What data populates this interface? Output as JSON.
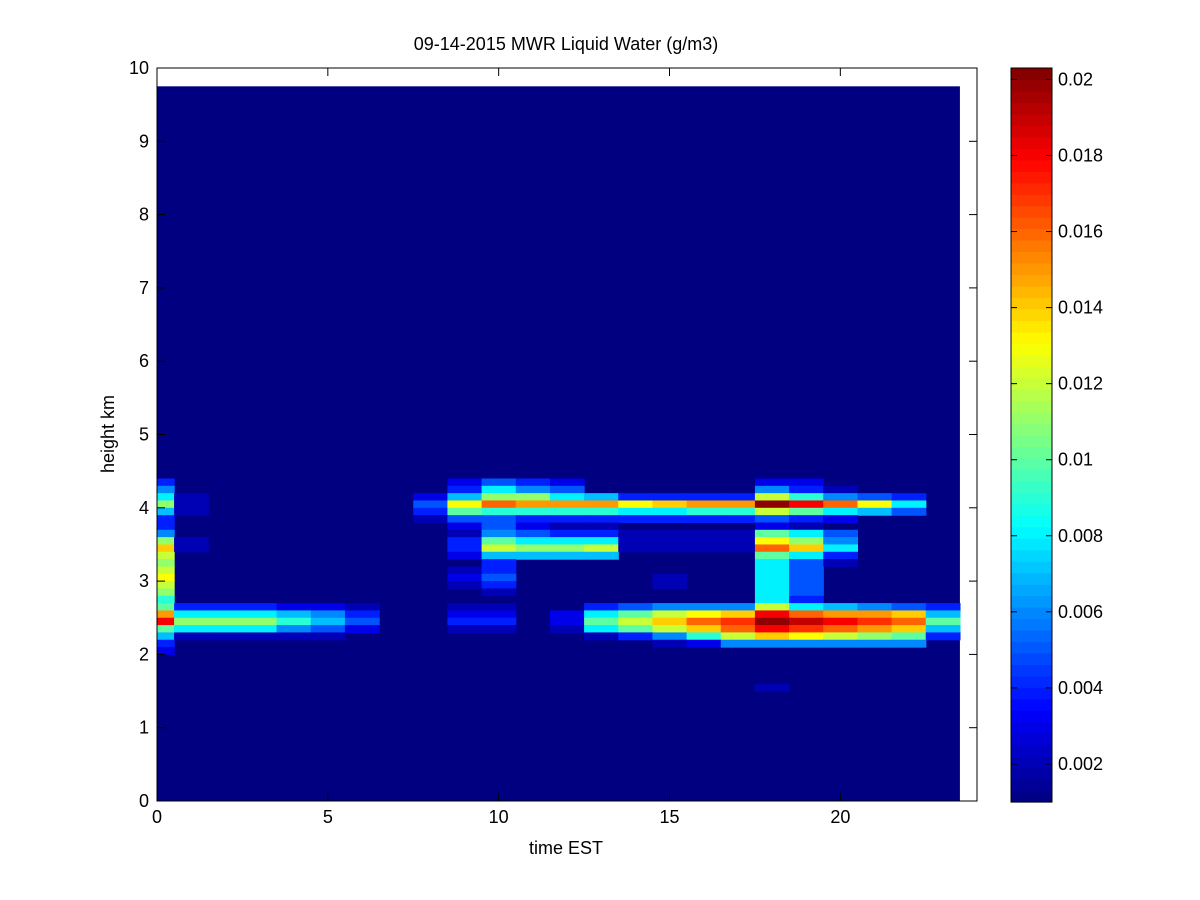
{
  "chart_data": {
    "type": "heatmap",
    "title": "09-14-2015 MWR Liquid Water (g/m3)",
    "xlabel": "time EST",
    "ylabel": "height km",
    "xlim": [
      0,
      24
    ],
    "ylim": [
      0,
      10
    ],
    "x_ticks": [
      0,
      5,
      10,
      15,
      20
    ],
    "y_ticks": [
      0,
      1,
      2,
      3,
      4,
      5,
      6,
      7,
      8,
      9,
      10
    ],
    "x_tick_labels": [
      "0",
      "5",
      "10",
      "15",
      "20"
    ],
    "y_tick_labels": [
      "0",
      "1",
      "2",
      "3",
      "4",
      "5",
      "6",
      "7",
      "8",
      "9",
      "10"
    ],
    "colorbar": {
      "colormap": "jet",
      "range": [
        0.001,
        0.0203
      ],
      "ticks": [
        0.002,
        0.004,
        0.006,
        0.008,
        0.01,
        0.012,
        0.014,
        0.016,
        0.018,
        0.02
      ],
      "tick_labels": [
        "0.002",
        "0.004",
        "0.006",
        "0.008",
        "0.01",
        "0.012",
        "0.014",
        "0.016",
        "0.018",
        "0.02"
      ]
    },
    "background_value": 0.001,
    "x_cell_edges": [
      0,
      0.5,
      1.5,
      2.5,
      3.5,
      4.5,
      5.5,
      6.5,
      7.5,
      8.5,
      9.5,
      10.5,
      11.5,
      12.5,
      13.5,
      14.5,
      15.5,
      16.5,
      17.5,
      18.5,
      19.5,
      20.5,
      21.5,
      22.5,
      23.5
    ],
    "y_top": 9.75,
    "bands": [
      {
        "y0": 4.3,
        "y1": 4.4,
        "values": [
          0.004,
          0.001,
          0.001,
          0.001,
          0.001,
          0.001,
          0.001,
          0.001,
          0.001,
          0.003,
          0.005,
          0.004,
          0.003,
          0.001,
          0.001,
          0.001,
          0.001,
          0.001,
          0.003,
          0.003,
          0.001,
          0.001,
          0.001,
          0.001
        ]
      },
      {
        "y0": 4.2,
        "y1": 4.3,
        "values": [
          0.006,
          0.001,
          0.001,
          0.001,
          0.001,
          0.001,
          0.001,
          0.001,
          0.001,
          0.004,
          0.008,
          0.006,
          0.005,
          0.001,
          0.001,
          0.001,
          0.001,
          0.001,
          0.006,
          0.004,
          0.002,
          0.001,
          0.001,
          0.001
        ]
      },
      {
        "y0": 4.1,
        "y1": 4.2,
        "values": [
          0.008,
          0.002,
          0.001,
          0.001,
          0.001,
          0.001,
          0.001,
          0.001,
          0.003,
          0.007,
          0.011,
          0.011,
          0.008,
          0.007,
          0.004,
          0.004,
          0.004,
          0.004,
          0.012,
          0.009,
          0.006,
          0.005,
          0.004,
          0.001
        ]
      },
      {
        "y0": 4.0,
        "y1": 4.1,
        "values": [
          0.011,
          0.002,
          0.001,
          0.001,
          0.001,
          0.001,
          0.001,
          0.001,
          0.005,
          0.013,
          0.016,
          0.015,
          0.015,
          0.015,
          0.013,
          0.014,
          0.015,
          0.015,
          0.02,
          0.018,
          0.016,
          0.013,
          0.008,
          0.001
        ]
      },
      {
        "y0": 3.9,
        "y1": 4.0,
        "values": [
          0.007,
          0.002,
          0.001,
          0.001,
          0.001,
          0.001,
          0.001,
          0.001,
          0.004,
          0.01,
          0.009,
          0.009,
          0.009,
          0.009,
          0.008,
          0.008,
          0.009,
          0.009,
          0.012,
          0.01,
          0.008,
          0.007,
          0.005,
          0.001
        ]
      },
      {
        "y0": 3.8,
        "y1": 3.9,
        "values": [
          0.004,
          0.001,
          0.001,
          0.001,
          0.001,
          0.001,
          0.001,
          0.001,
          0.002,
          0.005,
          0.005,
          0.004,
          0.004,
          0.004,
          0.004,
          0.004,
          0.004,
          0.004,
          0.005,
          0.004,
          0.003,
          0.001,
          0.001,
          0.001
        ]
      },
      {
        "y0": 3.7,
        "y1": 3.8,
        "values": [
          0.004,
          0.001,
          0.001,
          0.001,
          0.001,
          0.001,
          0.001,
          0.001,
          0.001,
          0.003,
          0.005,
          0.003,
          0.002,
          0.002,
          0.001,
          0.001,
          0.001,
          0.001,
          0.003,
          0.002,
          0.001,
          0.001,
          0.001,
          0.001
        ]
      },
      {
        "y0": 3.6,
        "y1": 3.7,
        "values": [
          0.006,
          0.001,
          0.001,
          0.001,
          0.001,
          0.001,
          0.001,
          0.001,
          0.001,
          0.002,
          0.006,
          0.005,
          0.004,
          0.004,
          0.002,
          0.002,
          0.002,
          0.002,
          0.01,
          0.008,
          0.005,
          0.001,
          0.001,
          0.001
        ]
      },
      {
        "y0": 3.5,
        "y1": 3.6,
        "values": [
          0.011,
          0.002,
          0.001,
          0.001,
          0.001,
          0.001,
          0.001,
          0.001,
          0.001,
          0.004,
          0.01,
          0.008,
          0.008,
          0.008,
          0.002,
          0.002,
          0.002,
          0.002,
          0.013,
          0.011,
          0.006,
          0.001,
          0.001,
          0.001
        ]
      },
      {
        "y0": 3.4,
        "y1": 3.5,
        "values": [
          0.014,
          0.002,
          0.001,
          0.001,
          0.001,
          0.001,
          0.001,
          0.001,
          0.001,
          0.004,
          0.012,
          0.011,
          0.011,
          0.012,
          0.002,
          0.002,
          0.002,
          0.002,
          0.016,
          0.014,
          0.008,
          0.001,
          0.001,
          0.001
        ]
      },
      {
        "y0": 3.3,
        "y1": 3.4,
        "values": [
          0.012,
          0.001,
          0.001,
          0.001,
          0.001,
          0.001,
          0.001,
          0.001,
          0.001,
          0.003,
          0.007,
          0.007,
          0.007,
          0.007,
          0.001,
          0.001,
          0.001,
          0.001,
          0.01,
          0.008,
          0.004,
          0.001,
          0.001,
          0.001
        ]
      },
      {
        "y0": 3.2,
        "y1": 3.3,
        "values": [
          0.011,
          0.001,
          0.001,
          0.001,
          0.001,
          0.001,
          0.001,
          0.001,
          0.001,
          0.001,
          0.004,
          0.001,
          0.001,
          0.001,
          0.001,
          0.001,
          0.001,
          0.001,
          0.008,
          0.005,
          0.002,
          0.001,
          0.001,
          0.001
        ]
      },
      {
        "y0": 3.1,
        "y1": 3.2,
        "values": [
          0.012,
          0.001,
          0.001,
          0.001,
          0.001,
          0.001,
          0.001,
          0.001,
          0.001,
          0.002,
          0.004,
          0.001,
          0.001,
          0.001,
          0.001,
          0.001,
          0.001,
          0.001,
          0.008,
          0.005,
          0.001,
          0.001,
          0.001,
          0.001
        ]
      },
      {
        "y0": 3.0,
        "y1": 3.1,
        "values": [
          0.013,
          0.001,
          0.001,
          0.001,
          0.001,
          0.001,
          0.001,
          0.001,
          0.001,
          0.003,
          0.005,
          0.001,
          0.001,
          0.001,
          0.001,
          0.002,
          0.001,
          0.001,
          0.008,
          0.005,
          0.001,
          0.001,
          0.001,
          0.001
        ]
      },
      {
        "y0": 2.9,
        "y1": 3.0,
        "values": [
          0.012,
          0.001,
          0.001,
          0.001,
          0.001,
          0.001,
          0.001,
          0.001,
          0.001,
          0.002,
          0.004,
          0.001,
          0.001,
          0.001,
          0.001,
          0.002,
          0.001,
          0.001,
          0.008,
          0.005,
          0.001,
          0.001,
          0.001,
          0.001
        ]
      },
      {
        "y0": 2.8,
        "y1": 2.9,
        "values": [
          0.011,
          0.001,
          0.001,
          0.001,
          0.001,
          0.001,
          0.001,
          0.001,
          0.001,
          0.001,
          0.002,
          0.001,
          0.001,
          0.001,
          0.001,
          0.001,
          0.001,
          0.001,
          0.008,
          0.005,
          0.001,
          0.001,
          0.001,
          0.001
        ]
      },
      {
        "y0": 2.7,
        "y1": 2.8,
        "values": [
          0.009,
          0.001,
          0.001,
          0.001,
          0.001,
          0.001,
          0.001,
          0.001,
          0.001,
          0.001,
          0.001,
          0.001,
          0.001,
          0.001,
          0.001,
          0.001,
          0.001,
          0.001,
          0.008,
          0.004,
          0.001,
          0.001,
          0.001,
          0.001
        ]
      },
      {
        "y0": 2.6,
        "y1": 2.7,
        "values": [
          0.01,
          0.004,
          0.004,
          0.004,
          0.003,
          0.003,
          0.002,
          0.001,
          0.001,
          0.002,
          0.002,
          0.001,
          0.001,
          0.004,
          0.005,
          0.006,
          0.006,
          0.006,
          0.012,
          0.008,
          0.007,
          0.006,
          0.005,
          0.004
        ]
      },
      {
        "y0": 2.5,
        "y1": 2.6,
        "values": [
          0.015,
          0.008,
          0.008,
          0.008,
          0.007,
          0.006,
          0.004,
          0.001,
          0.001,
          0.003,
          0.003,
          0.001,
          0.003,
          0.008,
          0.01,
          0.012,
          0.013,
          0.014,
          0.018,
          0.016,
          0.015,
          0.015,
          0.014,
          0.007
        ]
      },
      {
        "y0": 2.4,
        "y1": 2.5,
        "values": [
          0.018,
          0.011,
          0.011,
          0.011,
          0.009,
          0.007,
          0.005,
          0.001,
          0.001,
          0.004,
          0.004,
          0.001,
          0.003,
          0.01,
          0.012,
          0.014,
          0.016,
          0.017,
          0.02,
          0.019,
          0.018,
          0.017,
          0.016,
          0.01
        ]
      },
      {
        "y0": 2.3,
        "y1": 2.4,
        "values": [
          0.01,
          0.008,
          0.008,
          0.008,
          0.006,
          0.005,
          0.003,
          0.001,
          0.001,
          0.002,
          0.002,
          0.001,
          0.002,
          0.008,
          0.01,
          0.012,
          0.014,
          0.016,
          0.018,
          0.017,
          0.016,
          0.015,
          0.014,
          0.007
        ]
      },
      {
        "y0": 2.2,
        "y1": 2.3,
        "values": [
          0.007,
          0.002,
          0.002,
          0.002,
          0.002,
          0.002,
          0.001,
          0.001,
          0.001,
          0.001,
          0.001,
          0.001,
          0.001,
          0.002,
          0.004,
          0.006,
          0.009,
          0.012,
          0.014,
          0.013,
          0.012,
          0.011,
          0.01,
          0.004
        ]
      },
      {
        "y0": 2.1,
        "y1": 2.2,
        "values": [
          0.004,
          0.001,
          0.001,
          0.001,
          0.001,
          0.001,
          0.001,
          0.001,
          0.001,
          0.001,
          0.001,
          0.001,
          0.001,
          0.001,
          0.001,
          0.002,
          0.003,
          0.006,
          0.006,
          0.006,
          0.006,
          0.006,
          0.006,
          0.001
        ]
      },
      {
        "y0": 2.0,
        "y1": 2.1,
        "values": [
          0.003,
          0.001,
          0.001,
          0.001,
          0.001,
          0.001,
          0.001,
          0.001,
          0.001,
          0.001,
          0.001,
          0.001,
          0.001,
          0.001,
          0.001,
          0.001,
          0.001,
          0.001,
          0.001,
          0.001,
          0.001,
          0.001,
          0.001,
          0.001
        ]
      },
      {
        "y0": 1.5,
        "y1": 1.6,
        "values": [
          0.001,
          0.001,
          0.001,
          0.001,
          0.001,
          0.001,
          0.001,
          0.001,
          0.001,
          0.001,
          0.001,
          0.001,
          0.001,
          0.001,
          0.001,
          0.001,
          0.001,
          0.001,
          0.002,
          0.001,
          0.001,
          0.001,
          0.001,
          0.001
        ]
      }
    ]
  }
}
